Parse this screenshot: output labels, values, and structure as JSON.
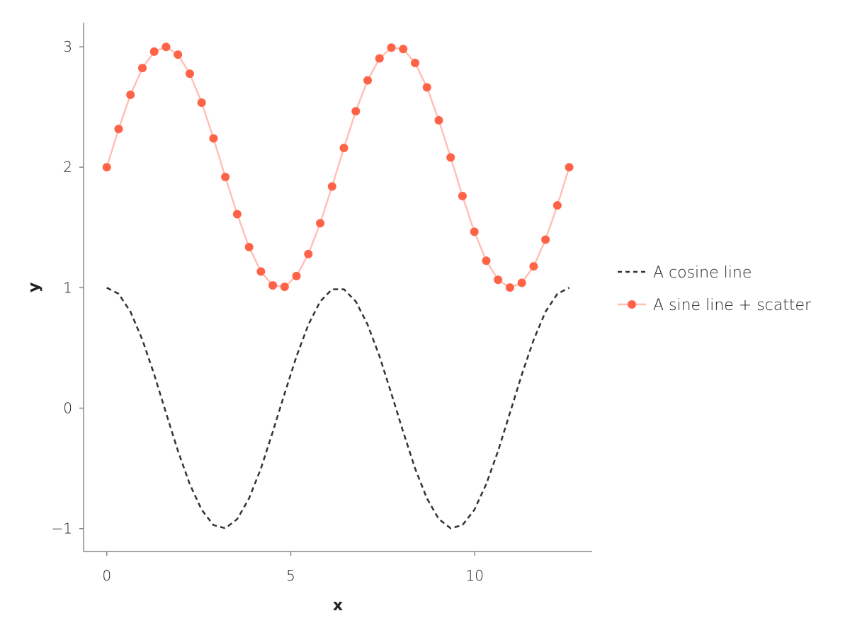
{
  "chart_data": {
    "type": "line",
    "title": "",
    "xlabel": "x",
    "ylabel": "y",
    "xlim": [
      -0.63,
      13.19
    ],
    "ylim": [
      -1.19,
      3.2
    ],
    "xticks": [
      0,
      5,
      10
    ],
    "xtick_labels": [
      "0",
      "5",
      "10"
    ],
    "yticks": [
      -1,
      0,
      1,
      2,
      3
    ],
    "ytick_labels": [
      "−1",
      "0",
      "1",
      "2",
      "3"
    ],
    "grid": false,
    "legend_position": "right",
    "x": [
      0,
      0.322,
      0.644,
      0.967,
      1.289,
      1.611,
      1.933,
      2.256,
      2.578,
      2.9,
      3.222,
      3.544,
      3.867,
      4.189,
      4.511,
      4.833,
      5.155,
      5.478,
      5.8,
      6.122,
      6.444,
      6.767,
      7.089,
      7.411,
      7.733,
      8.055,
      8.378,
      8.7,
      9.022,
      9.344,
      9.666,
      9.989,
      10.311,
      10.633,
      10.955,
      11.278,
      11.6,
      11.922,
      12.244,
      12.566
    ],
    "series": [
      {
        "name": "A cosine line",
        "style": "dashed-line",
        "color": "#333333",
        "values": [
          1,
          0.949,
          0.8,
          0.568,
          0.279,
          -0.04,
          -0.355,
          -0.631,
          -0.844,
          -0.971,
          -0.997,
          -0.921,
          -0.749,
          -0.5,
          -0.196,
          0.121,
          0.43,
          0.693,
          0.886,
          0.987,
          0.987,
          0.886,
          0.693,
          0.43,
          0.121,
          -0.196,
          -0.5,
          -0.749,
          -0.921,
          -0.997,
          -0.971,
          -0.844,
          -0.631,
          -0.355,
          -0.04,
          0.279,
          0.568,
          0.8,
          0.949,
          1
        ]
      },
      {
        "name": "A sine line + scatter",
        "style": "line+scatter",
        "color": "#ff6347",
        "line_color": "#ffc0b5",
        "values": [
          2,
          2.317,
          2.601,
          2.823,
          2.96,
          2.999,
          2.935,
          2.776,
          2.536,
          2.239,
          1.919,
          1.61,
          1.337,
          1.134,
          1.019,
          1.007,
          1.097,
          1.279,
          1.535,
          1.84,
          2.16,
          2.465,
          2.721,
          2.903,
          2.993,
          2.981,
          2.866,
          2.663,
          2.39,
          2.081,
          1.761,
          1.464,
          1.224,
          1.065,
          1.001,
          1.04,
          1.177,
          1.399,
          1.683,
          2
        ]
      }
    ]
  }
}
